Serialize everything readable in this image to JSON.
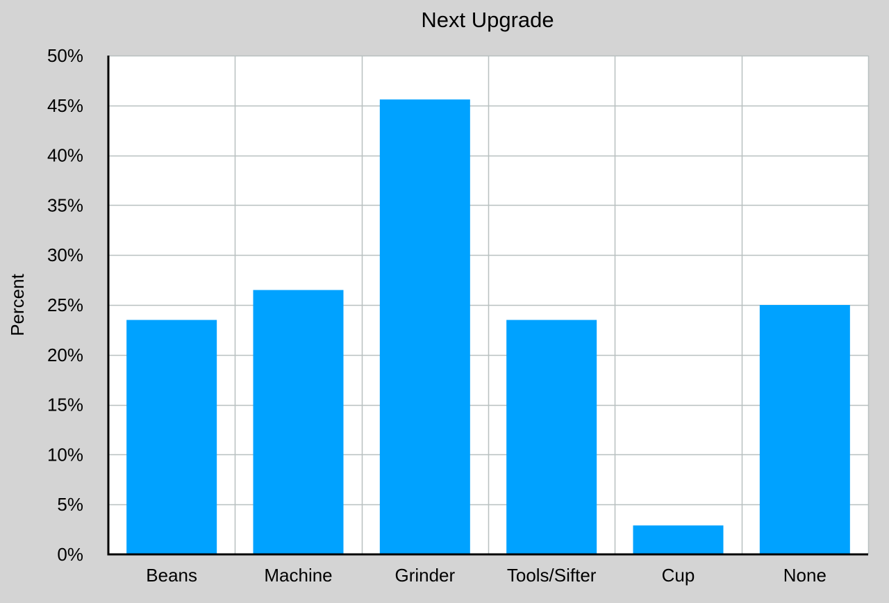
{
  "chart_data": {
    "type": "bar",
    "title": "Next Upgrade",
    "xlabel": "",
    "ylabel": "Percent",
    "categories": [
      "Beans",
      "Machine",
      "Grinder",
      "Tools/Sifter",
      "Cup",
      "None"
    ],
    "values": [
      23.5,
      26.5,
      45.6,
      23.5,
      2.9,
      25.0
    ],
    "ylim": [
      0,
      50
    ],
    "yticks": [
      0,
      5,
      10,
      15,
      20,
      25,
      30,
      35,
      40,
      45,
      50
    ],
    "ytick_labels": [
      "0%",
      "5%",
      "10%",
      "15%",
      "20%",
      "25%",
      "30%",
      "35%",
      "40%",
      "45%",
      "50%"
    ],
    "grid": true,
    "legend": "none",
    "colors": {
      "bar": "#00a2ff",
      "background": "#d4d4d4",
      "plot_background": "#ffffff",
      "grid": "#b8c0c0",
      "axis": "#000000"
    }
  }
}
